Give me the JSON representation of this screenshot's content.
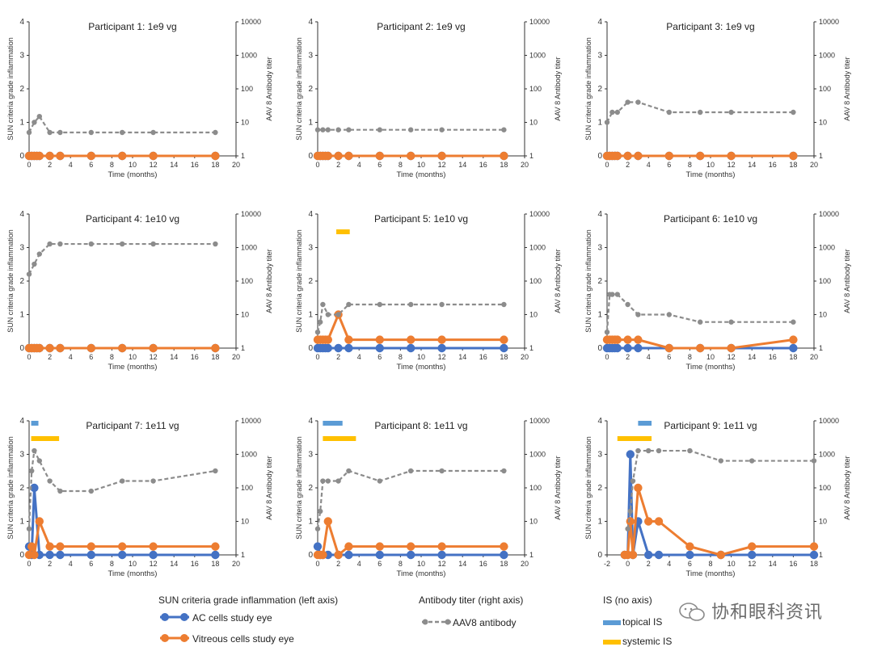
{
  "chart_data": [
    {
      "type": "line",
      "title": "Participant 1: 1e9 vg",
      "xlabel": "Time (months)",
      "ylabel_left": "SUN criteria grade inflammation",
      "ylabel_right": "AAV 8 Antibody titer",
      "xlim": [
        0,
        20
      ],
      "ylim_left": [
        0,
        4
      ],
      "ylim_right": [
        1,
        10000
      ],
      "x_ticks": [
        0,
        2,
        4,
        6,
        8,
        10,
        12,
        14,
        16,
        18,
        20
      ],
      "series": [
        {
          "name": "AC cells study eye",
          "axis": "left",
          "x": [
            0,
            0.25,
            0.5,
            0.75,
            1,
            2,
            3,
            6,
            9,
            12,
            18
          ],
          "y": [
            0,
            0,
            0,
            0,
            0,
            0,
            0,
            0,
            0,
            0,
            0
          ]
        },
        {
          "name": "Vitreous cells study eye",
          "axis": "left",
          "x": [
            0,
            0.25,
            0.5,
            0.75,
            1,
            2,
            3,
            6,
            9,
            12,
            18
          ],
          "y": [
            0,
            0,
            0,
            0,
            0,
            0,
            0,
            0,
            0,
            0,
            0
          ]
        },
        {
          "name": "AAV8 antibody",
          "axis": "right",
          "x": [
            0,
            0.5,
            1,
            2,
            3,
            6,
            9,
            12,
            18
          ],
          "y": [
            5,
            10,
            15,
            5,
            5,
            5,
            5,
            5,
            5
          ]
        }
      ],
      "is_bars": []
    },
    {
      "type": "line",
      "title": "Participant 2: 1e9 vg",
      "xlabel": "Time (months)",
      "ylabel_left": "SUN criteria grade inflammation",
      "ylabel_right": "AAV 8 Antibody titer",
      "xlim": [
        0,
        20
      ],
      "ylim_left": [
        0,
        4
      ],
      "ylim_right": [
        1,
        10000
      ],
      "x_ticks": [
        0,
        2,
        4,
        6,
        8,
        10,
        12,
        14,
        16,
        18,
        20
      ],
      "series": [
        {
          "name": "AC cells study eye",
          "axis": "left",
          "x": [
            0,
            0.25,
            0.5,
            0.75,
            1,
            2,
            3,
            6,
            9,
            12,
            18
          ],
          "y": [
            0,
            0,
            0,
            0,
            0,
            0,
            0,
            0,
            0,
            0,
            0
          ]
        },
        {
          "name": "Vitreous cells study eye",
          "axis": "left",
          "x": [
            0,
            0.25,
            0.5,
            0.75,
            1,
            2,
            3,
            6,
            9,
            12,
            18
          ],
          "y": [
            0,
            0,
            0,
            0,
            0,
            0,
            0,
            0,
            0,
            0,
            0
          ]
        },
        {
          "name": "AAV8 antibody",
          "axis": "right",
          "x": [
            0,
            0.5,
            1,
            2,
            3,
            6,
            9,
            12,
            18
          ],
          "y": [
            6,
            6,
            6,
            6,
            6,
            6,
            6,
            6,
            6
          ]
        }
      ],
      "is_bars": []
    },
    {
      "type": "line",
      "title": "Participant 3: 1e9 vg",
      "xlabel": "Time (months)",
      "ylabel_left": "SUN criteria grade inflammation",
      "ylabel_right": "AAV 8 Antibody titer",
      "xlim": [
        0,
        20
      ],
      "ylim_left": [
        0,
        4
      ],
      "ylim_right": [
        1,
        10000
      ],
      "x_ticks": [
        0,
        2,
        4,
        6,
        8,
        10,
        12,
        14,
        16,
        18,
        20
      ],
      "series": [
        {
          "name": "AC cells study eye",
          "axis": "left",
          "x": [
            0,
            0.25,
            0.5,
            0.75,
            1,
            2,
            3,
            6,
            9,
            12,
            18
          ],
          "y": [
            0,
            0,
            0,
            0,
            0,
            0,
            0,
            0,
            0,
            0,
            0
          ]
        },
        {
          "name": "Vitreous cells study eye",
          "axis": "left",
          "x": [
            0,
            0.25,
            0.5,
            0.75,
            1,
            2,
            3,
            6,
            9,
            12,
            18
          ],
          "y": [
            0,
            0,
            0,
            0,
            0,
            0,
            0,
            0,
            0,
            0,
            0
          ]
        },
        {
          "name": "AAV8 antibody",
          "axis": "right",
          "x": [
            0,
            0.5,
            1,
            2,
            3,
            6,
            9,
            12,
            18
          ],
          "y": [
            10,
            20,
            20,
            40,
            40,
            20,
            20,
            20,
            20
          ]
        }
      ],
      "is_bars": []
    },
    {
      "type": "line",
      "title": "Participant 4: 1e10 vg",
      "xlabel": "Time (months)",
      "ylabel_left": "SUN criteria grade inflammation",
      "ylabel_right": "AAV 8 Antibody titer",
      "xlim": [
        0,
        20
      ],
      "ylim_left": [
        0,
        4
      ],
      "ylim_right": [
        1,
        10000
      ],
      "x_ticks": [
        0,
        2,
        4,
        6,
        8,
        10,
        12,
        14,
        16,
        18,
        20
      ],
      "series": [
        {
          "name": "AC cells study eye",
          "axis": "left",
          "x": [
            0,
            0.25,
            0.5,
            0.75,
            1,
            2,
            3,
            6,
            9,
            12,
            18
          ],
          "y": [
            0,
            0,
            0,
            0,
            0,
            0,
            0,
            0,
            0,
            0,
            0
          ]
        },
        {
          "name": "Vitreous cells study eye",
          "axis": "left",
          "x": [
            0,
            0.25,
            0.5,
            0.75,
            1,
            2,
            3,
            6,
            9,
            12,
            18
          ],
          "y": [
            0,
            0,
            0,
            0,
            0,
            0,
            0,
            0,
            0,
            0,
            0
          ]
        },
        {
          "name": "AAV8 antibody",
          "axis": "right",
          "x": [
            0,
            0.5,
            1,
            2,
            3,
            6,
            9,
            12,
            18
          ],
          "y": [
            160,
            320,
            640,
            1280,
            1280,
            1280,
            1280,
            1280,
            1280
          ]
        }
      ],
      "is_bars": []
    },
    {
      "type": "line",
      "title": "Participant 5: 1e10 vg",
      "xlabel": "Time (months)",
      "ylabel_left": "SUN criteria grade inflammation",
      "ylabel_right": "AAV 8 Antibody titer",
      "xlim": [
        0,
        20
      ],
      "ylim_left": [
        0,
        4
      ],
      "ylim_right": [
        1,
        10000
      ],
      "x_ticks": [
        0,
        2,
        4,
        6,
        8,
        10,
        12,
        14,
        16,
        18,
        20
      ],
      "series": [
        {
          "name": "AC cells study eye",
          "axis": "left",
          "x": [
            0,
            0.25,
            0.5,
            0.75,
            1,
            2,
            3,
            6,
            9,
            12,
            18
          ],
          "y": [
            0,
            0,
            0,
            0,
            0,
            0,
            0,
            0,
            0,
            0,
            0
          ]
        },
        {
          "name": "Vitreous cells study eye",
          "axis": "left",
          "x": [
            0,
            0.25,
            0.5,
            0.75,
            1,
            2,
            3,
            6,
            9,
            12,
            18
          ],
          "y": [
            0.25,
            0.25,
            0.25,
            0.25,
            0.25,
            1,
            0.25,
            0.25,
            0.25,
            0.25,
            0.25
          ]
        },
        {
          "name": "AAV8 antibody",
          "axis": "right",
          "x": [
            0,
            0.25,
            0.5,
            1,
            2,
            3,
            6,
            9,
            12,
            18
          ],
          "y": [
            3,
            6,
            20,
            10,
            10,
            20,
            20,
            20,
            20,
            20
          ]
        }
      ],
      "is_bars": [
        {
          "kind": "systemic",
          "x0": 1.8,
          "x1": 3.1
        }
      ]
    },
    {
      "type": "line",
      "title": "Participant 6: 1e10 vg",
      "xlabel": "Time (months)",
      "ylabel_left": "SUN criteria grade inflammation",
      "ylabel_right": "AAV 8 Antibody titer",
      "xlim": [
        0,
        20
      ],
      "ylim_left": [
        0,
        4
      ],
      "ylim_right": [
        1,
        10000
      ],
      "x_ticks": [
        0,
        2,
        4,
        6,
        8,
        10,
        12,
        14,
        16,
        18,
        20
      ],
      "series": [
        {
          "name": "AC cells study eye",
          "axis": "left",
          "x": [
            0,
            0.25,
            0.5,
            0.75,
            1,
            2,
            3,
            6,
            9,
            12,
            18
          ],
          "y": [
            0,
            0,
            0,
            0,
            0,
            0,
            0,
            0,
            0,
            0,
            0
          ]
        },
        {
          "name": "Vitreous cells study eye",
          "axis": "left",
          "x": [
            0,
            0.25,
            0.5,
            0.75,
            1,
            2,
            3,
            6,
            9,
            12,
            18
          ],
          "y": [
            0.25,
            0.25,
            0.25,
            0.25,
            0.25,
            0.25,
            0.25,
            0,
            0,
            0,
            0.25
          ]
        },
        {
          "name": "AAV8 antibody",
          "axis": "right",
          "x": [
            0,
            0.25,
            0.5,
            1,
            2,
            3,
            6,
            9,
            12,
            18
          ],
          "y": [
            3,
            40,
            40,
            40,
            20,
            10,
            10,
            6,
            6,
            6
          ]
        }
      ],
      "is_bars": []
    },
    {
      "type": "line",
      "title": "Participant 7: 1e11 vg",
      "xlabel": "Time (months)",
      "ylabel_left": "SUN criteria grade inflammation",
      "ylabel_right": "AAV 8 Antibody titer",
      "xlim": [
        0,
        20
      ],
      "ylim_left": [
        0,
        4
      ],
      "ylim_right": [
        1,
        10000
      ],
      "x_ticks": [
        0,
        2,
        4,
        6,
        8,
        10,
        12,
        14,
        16,
        18,
        20
      ],
      "series": [
        {
          "name": "AC cells study eye",
          "axis": "left",
          "x": [
            0,
            0.25,
            0.5,
            1,
            2,
            3,
            6,
            9,
            12,
            18
          ],
          "y": [
            0.25,
            0,
            2,
            0,
            0,
            0,
            0,
            0,
            0,
            0
          ]
        },
        {
          "name": "Vitreous cells study eye",
          "axis": "left",
          "x": [
            0,
            0.25,
            0.5,
            1,
            2,
            3,
            6,
            9,
            12,
            18
          ],
          "y": [
            0,
            0.25,
            0,
            1,
            0.25,
            0.25,
            0.25,
            0.25,
            0.25,
            0.25
          ]
        },
        {
          "name": "AAV8 antibody",
          "axis": "right",
          "x": [
            0,
            0.25,
            0.5,
            1,
            2,
            3,
            6,
            9,
            12,
            18
          ],
          "y": [
            6,
            320,
            1280,
            640,
            160,
            80,
            80,
            160,
            160,
            320
          ]
        }
      ],
      "is_bars": [
        {
          "kind": "topical",
          "x0": 0.2,
          "x1": 0.9
        },
        {
          "kind": "systemic",
          "x0": 0.2,
          "x1": 2.9
        }
      ]
    },
    {
      "type": "line",
      "title": "Participant 8: 1e11 vg",
      "xlabel": "Time (months)",
      "ylabel_left": "SUN criteria grade inflammation",
      "ylabel_right": "AAV 8 Antibody titer",
      "xlim": [
        0,
        20
      ],
      "ylim_left": [
        0,
        4
      ],
      "ylim_right": [
        1,
        10000
      ],
      "x_ticks": [
        0,
        2,
        4,
        6,
        8,
        10,
        12,
        14,
        16,
        18,
        20
      ],
      "series": [
        {
          "name": "AC cells study eye",
          "axis": "left",
          "x": [
            0,
            0.25,
            0.5,
            1,
            2,
            3,
            6,
            9,
            12,
            18
          ],
          "y": [
            0.25,
            0,
            0,
            0,
            0,
            0,
            0,
            0,
            0,
            0
          ]
        },
        {
          "name": "Vitreous cells study eye",
          "axis": "left",
          "x": [
            0,
            0.25,
            0.5,
            1,
            2,
            3,
            6,
            9,
            12,
            18
          ],
          "y": [
            0,
            0,
            0,
            1,
            0,
            0.25,
            0.25,
            0.25,
            0.25,
            0.25
          ]
        },
        {
          "name": "AAV8 antibody",
          "axis": "right",
          "x": [
            0,
            0.25,
            0.5,
            1,
            2,
            3,
            6,
            9,
            12,
            18
          ],
          "y": [
            6,
            20,
            160,
            160,
            160,
            320,
            160,
            320,
            320,
            320
          ]
        }
      ],
      "is_bars": [
        {
          "kind": "topical",
          "x0": 0.5,
          "x1": 2.4
        },
        {
          "kind": "systemic",
          "x0": 0.5,
          "x1": 3.7
        }
      ]
    },
    {
      "type": "line",
      "title": "Participant 9: 1e11 vg",
      "xlabel": "Time (months)",
      "ylabel_left": "SUN criteria grade inflammation",
      "ylabel_right": "AAV 8 Antibody titer",
      "xlim": [
        -2,
        18
      ],
      "ylim_left": [
        0,
        4
      ],
      "ylim_right": [
        1,
        10000
      ],
      "x_ticks": [
        -2,
        0,
        2,
        4,
        6,
        8,
        10,
        12,
        14,
        16,
        18
      ],
      "series": [
        {
          "name": "AC cells study eye",
          "axis": "left",
          "x": [
            -0.3,
            0,
            0.25,
            0.5,
            1,
            2,
            3,
            6,
            9,
            12,
            18
          ],
          "y": [
            0,
            0,
            3,
            0,
            1,
            0,
            0,
            0,
            0,
            0,
            0
          ]
        },
        {
          "name": "Vitreous cells study eye",
          "axis": "left",
          "x": [
            -0.3,
            0,
            0.25,
            0.5,
            1,
            2,
            3,
            6,
            9,
            12,
            18
          ],
          "y": [
            0,
            0,
            1,
            0,
            2,
            1,
            1,
            0.25,
            0,
            0.25,
            0.25
          ]
        },
        {
          "name": "AAV8 antibody",
          "axis": "right",
          "x": [
            0,
            0.25,
            0.5,
            1,
            2,
            3,
            6,
            9,
            12,
            18
          ],
          "y": [
            6,
            20,
            160,
            1280,
            1280,
            1280,
            1280,
            640,
            640,
            640
          ]
        }
      ],
      "is_bars": [
        {
          "kind": "topical",
          "x0": 1.0,
          "x1": 2.3
        },
        {
          "kind": "systemic",
          "x0": -1.0,
          "x1": 2.3
        }
      ]
    }
  ],
  "legend": {
    "left_heading": "SUN criteria grade inflammation (left axis)",
    "ac_label": "AC cells study eye",
    "vit_label": "Vitreous cells study eye",
    "mid_heading": "Antibody titer (right axis)",
    "ab_label": "AAV8 antibody",
    "right_heading": "IS (no axis)",
    "topical_label": "topical IS",
    "systemic_label": "systemic IS"
  },
  "watermark": "协和眼科资讯",
  "colors": {
    "ac": "#4472c4",
    "vitreous": "#ed7d31",
    "antibody": "#8c8c8c",
    "topical": "#5b9bd5",
    "systemic": "#ffc000"
  }
}
